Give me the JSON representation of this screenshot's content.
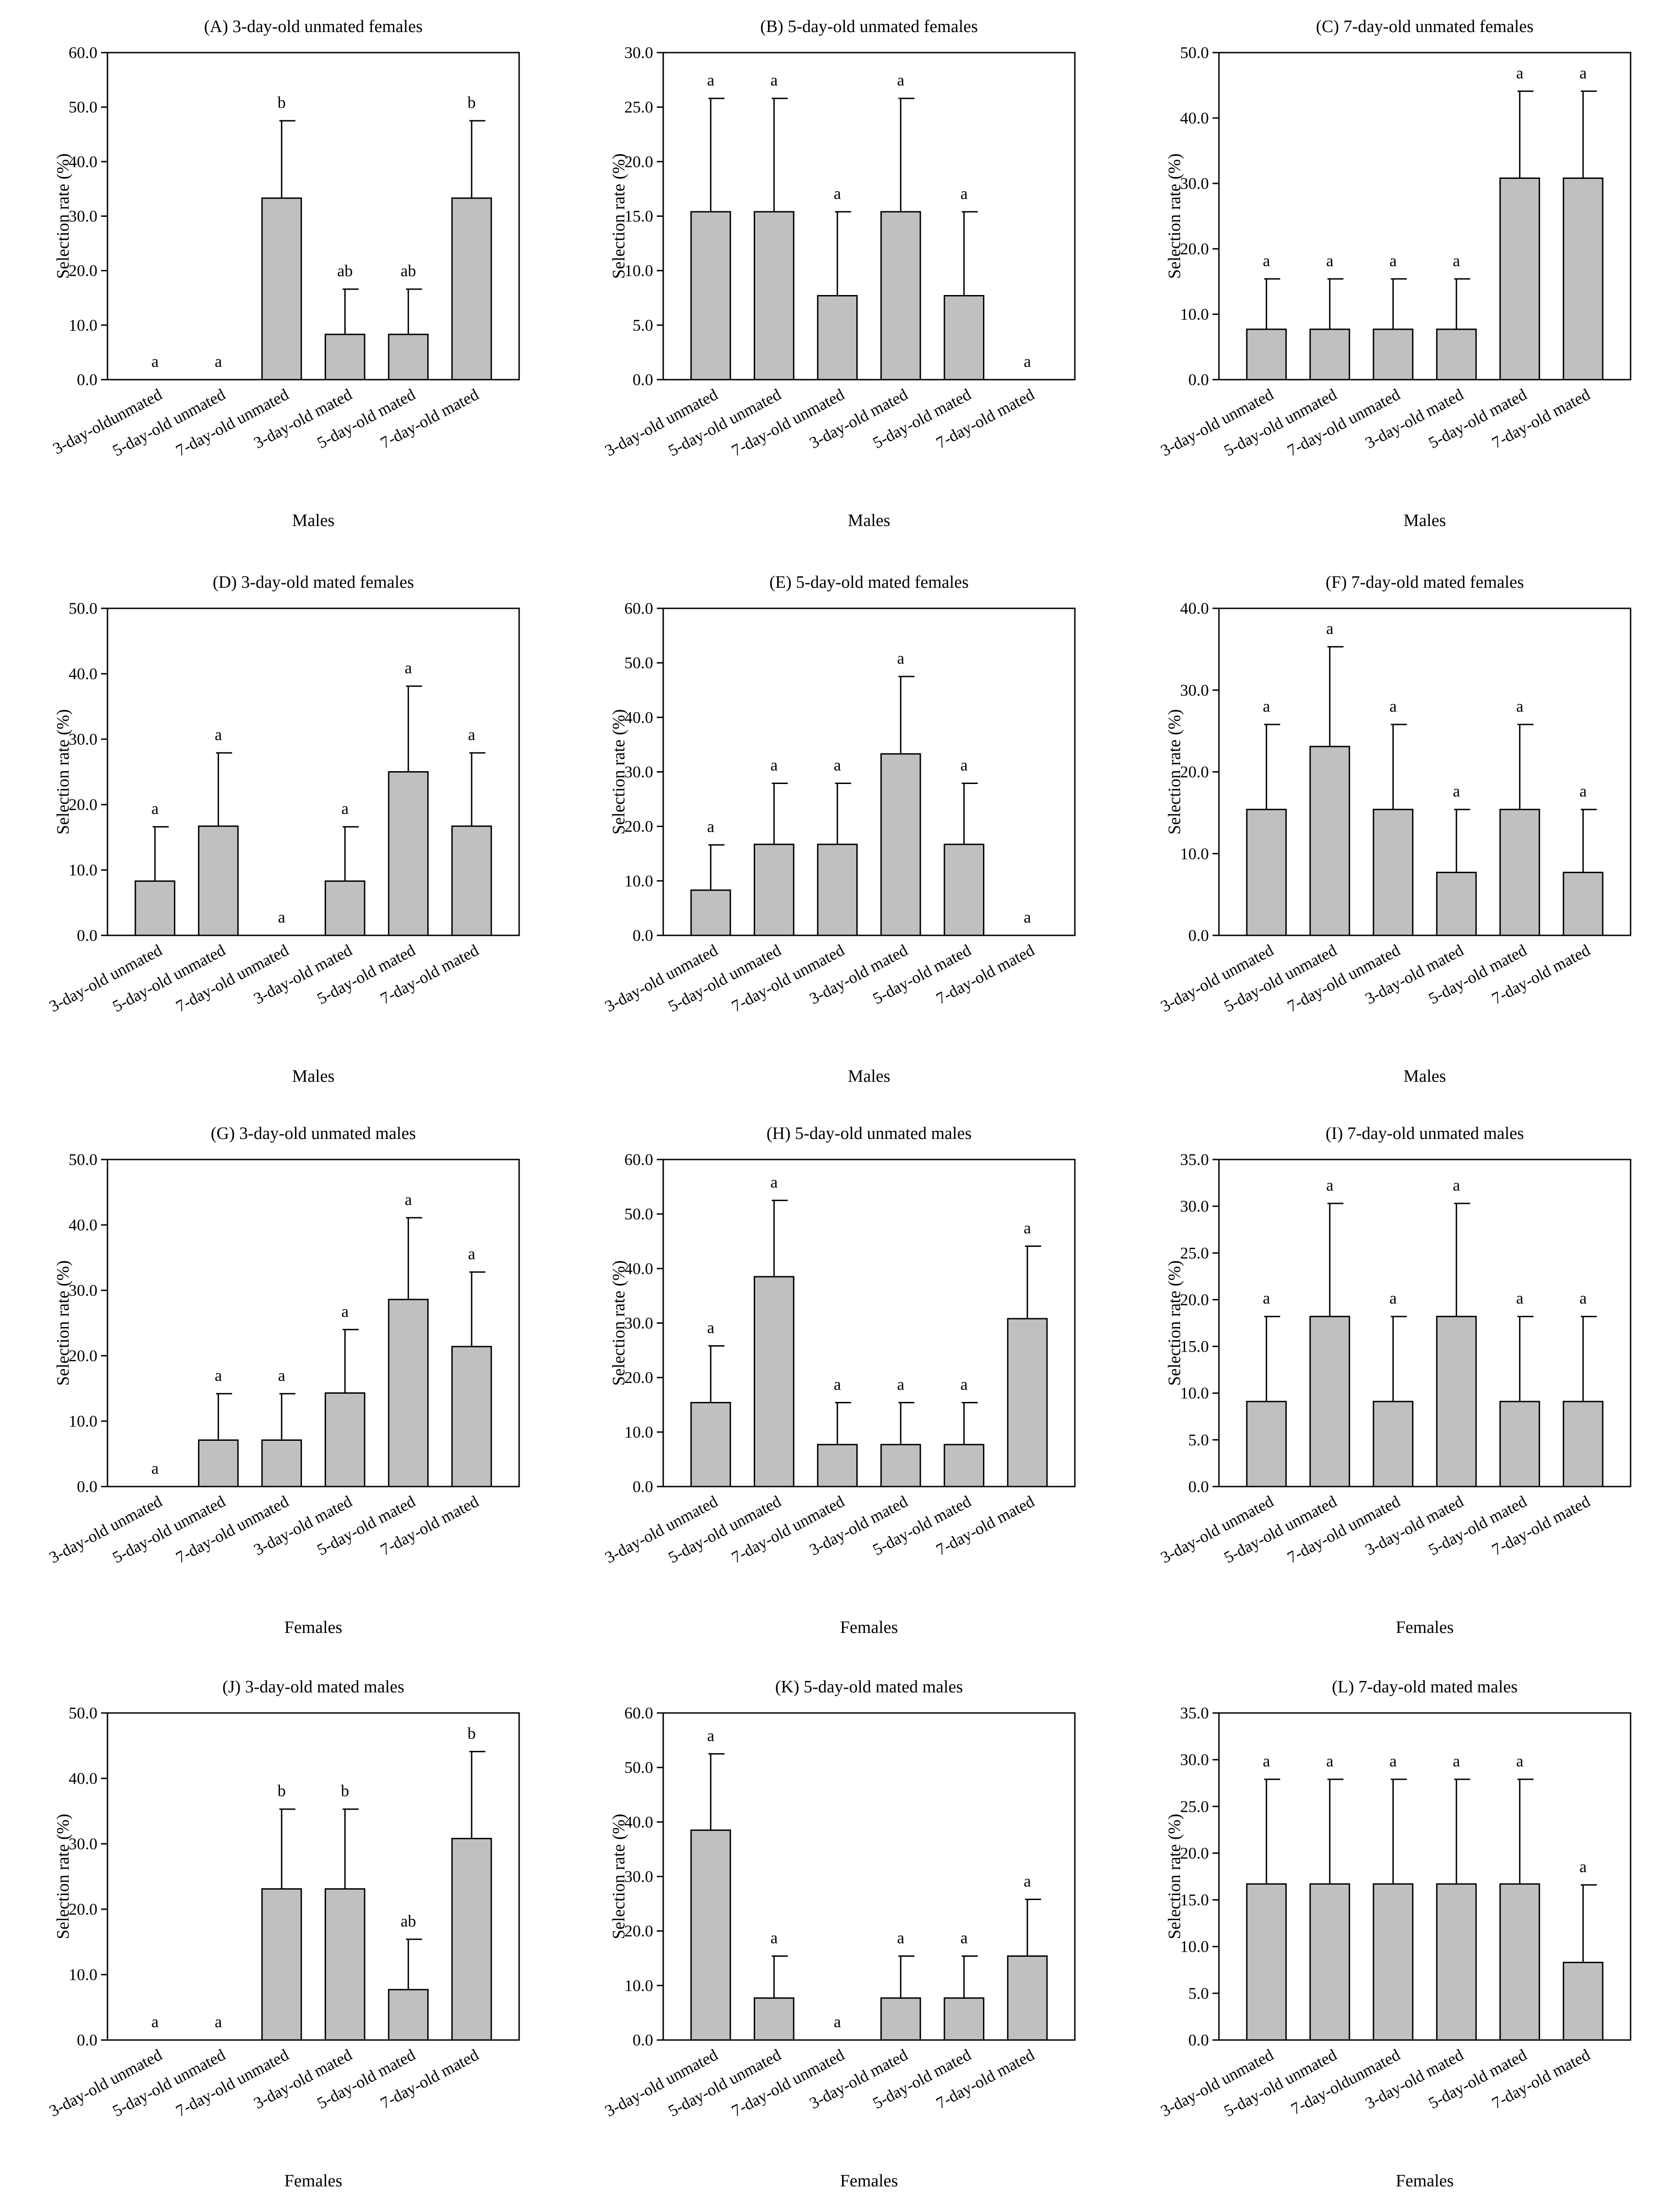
{
  "figure": {
    "bar_color": "#c0c0c0",
    "ylabel": "Selection rate (%)"
  },
  "chart_data": [
    {
      "panel": "A",
      "type": "bar",
      "title": "(A) 3-day-old unmated females",
      "xlabel": "Males",
      "ylabel": "Selection rate (%)",
      "ylim": [
        0,
        60
      ],
      "yticks": [
        "0.0",
        "10.0",
        "20.0",
        "30.0",
        "40.0",
        "50.0",
        "60.0"
      ],
      "categories": [
        "3-day-oldunmated",
        "5-day-old unmated",
        "7-day-old unmated",
        "3-day-old mated",
        "5-day-old  mated",
        "7-day-old mated"
      ],
      "values": [
        0,
        0,
        33.3,
        8.3,
        8.3,
        33.3
      ],
      "errors": [
        0,
        0,
        14.2,
        8.3,
        8.3,
        14.2
      ],
      "letters": [
        "a",
        "a",
        "b",
        "ab",
        "ab",
        "b"
      ]
    },
    {
      "panel": "B",
      "type": "bar",
      "title": "(B) 5-day-old unmated females",
      "xlabel": "Males",
      "ylabel": "Selection rate (%)",
      "ylim": [
        0,
        30
      ],
      "yticks": [
        "0.0",
        "5.0",
        "10.0",
        "15.0",
        "20.0",
        "25.0",
        "30.0"
      ],
      "categories": [
        "3-day-old unmated",
        "5-day-old unmated",
        "7-day-old unmated",
        "3-day-old mated",
        "5-day-old mated",
        "7-day-old mated"
      ],
      "values": [
        15.4,
        15.4,
        7.7,
        15.4,
        7.7,
        0
      ],
      "errors": [
        10.4,
        10.4,
        7.7,
        10.4,
        7.7,
        0
      ],
      "letters": [
        "a",
        "a",
        "a",
        "a",
        "a",
        "a"
      ]
    },
    {
      "panel": "C",
      "type": "bar",
      "title": "(C) 7-day-old unmated females",
      "xlabel": "Males",
      "ylabel": "Selection rate (%)",
      "ylim": [
        0,
        50
      ],
      "yticks": [
        "0.0",
        "10.0",
        "20.0",
        "30.0",
        "40.0",
        "50.0"
      ],
      "categories": [
        "3-day-old unmated",
        "5-day-old unmated",
        "7-day-old unmated",
        "3-day-old mated",
        "5-day-old mated",
        "7-day-old mated"
      ],
      "values": [
        7.7,
        7.7,
        7.7,
        7.7,
        30.8,
        30.8
      ],
      "errors": [
        7.7,
        7.7,
        7.7,
        7.7,
        13.3,
        13.3
      ],
      "letters": [
        "a",
        "a",
        "a",
        "a",
        "a",
        "a"
      ]
    },
    {
      "panel": "D",
      "type": "bar",
      "title": "(D) 3-day-old mated females",
      "xlabel": "Males",
      "ylabel": "Selection rate (%)",
      "ylim": [
        0,
        50
      ],
      "yticks": [
        "0.0",
        "10.0",
        "20.0",
        "30.0",
        "40.0",
        "50.0"
      ],
      "categories": [
        "3-day-old unmated",
        "5-day-old unmated",
        "7-day-old unmated",
        "3-day-old mated",
        "5-day-old mated",
        "7-day-old mated"
      ],
      "values": [
        8.3,
        16.7,
        0,
        8.3,
        25.0,
        16.7
      ],
      "errors": [
        8.3,
        11.2,
        0,
        8.3,
        13.1,
        11.2
      ],
      "letters": [
        "a",
        "a",
        "a",
        "a",
        "a",
        "a"
      ]
    },
    {
      "panel": "E",
      "type": "bar",
      "title": "(E) 5-day-old mated females",
      "xlabel": "Males",
      "ylabel": "Selection rate (%)",
      "ylim": [
        0,
        60
      ],
      "yticks": [
        "0.0",
        "10.0",
        "20.0",
        "30.0",
        "40.0",
        "50.0",
        "60.0"
      ],
      "categories": [
        "3-day-old unmated",
        "5-day-old unmated",
        "7-day-old unmated",
        "3-day-old mated",
        "5-day-old mated",
        "7-day-old mated"
      ],
      "values": [
        8.3,
        16.7,
        16.7,
        33.3,
        16.7,
        0
      ],
      "errors": [
        8.3,
        11.2,
        11.2,
        14.2,
        11.2,
        0
      ],
      "letters": [
        "a",
        "a",
        "a",
        "a",
        "a",
        "a"
      ]
    },
    {
      "panel": "F",
      "type": "bar",
      "title": "(F) 7-day-old mated females",
      "xlabel": "Males",
      "ylabel": "Selection rate (%)",
      "ylim": [
        0,
        40
      ],
      "yticks": [
        "0.0",
        "10.0",
        "20.0",
        "30.0",
        "40.0"
      ],
      "categories": [
        "3-day-old unmated",
        "5-day-old unmated",
        "7-day-old unmated",
        "3-day-old mated",
        "5-day-old mated",
        "7-day-old mated"
      ],
      "values": [
        15.4,
        23.1,
        15.4,
        7.7,
        15.4,
        7.7
      ],
      "errors": [
        10.4,
        12.2,
        10.4,
        7.7,
        10.4,
        7.7
      ],
      "letters": [
        "a",
        "a",
        "a",
        "a",
        "a",
        "a"
      ]
    },
    {
      "panel": "G",
      "type": "bar",
      "title": "(G) 3-day-old unmated males",
      "xlabel": "Females",
      "ylabel": "Selection rate (%)",
      "ylim": [
        0,
        50
      ],
      "yticks": [
        "0.0",
        "10.0",
        "20.0",
        "30.0",
        "40.0",
        "50.0"
      ],
      "categories": [
        "3-day-old unmated",
        "5-day-old unmated",
        "7-day-old unmated",
        "3-day-old mated",
        "5-day-old mated",
        "7-day-old mated"
      ],
      "values": [
        0,
        7.1,
        7.1,
        14.3,
        28.6,
        21.4
      ],
      "errors": [
        0,
        7.1,
        7.1,
        9.7,
        12.5,
        11.4
      ],
      "letters": [
        "a",
        "a",
        "a",
        "a",
        "a",
        "a"
      ]
    },
    {
      "panel": "H",
      "type": "bar",
      "title": "(H) 5-day-old unmated males",
      "xlabel": "Females",
      "ylabel": "Selection rate (%)",
      "ylim": [
        0,
        60
      ],
      "yticks": [
        "0.0",
        "10.0",
        "20.0",
        "30.0",
        "40.0",
        "50.0",
        "60.0"
      ],
      "categories": [
        "3-day-old unmated",
        "5-day-old unmated",
        "7-day-old unmated",
        "3-day-old mated",
        "5-day-old mated",
        "7-day-old mated"
      ],
      "values": [
        15.4,
        38.5,
        7.7,
        7.7,
        7.7,
        30.8
      ],
      "errors": [
        10.4,
        14.0,
        7.7,
        7.7,
        7.7,
        13.3
      ],
      "letters": [
        "a",
        "a",
        "a",
        "a",
        "a",
        "a"
      ]
    },
    {
      "panel": "I",
      "type": "bar",
      "title": "(I) 7-day-old unmated males",
      "xlabel": "Females",
      "ylabel": "Selection rate (%)",
      "ylim": [
        0,
        35
      ],
      "yticks": [
        "0.0",
        "5.0",
        "10.0",
        "15.0",
        "20.0",
        "25.0",
        "30.0",
        "35.0"
      ],
      "categories": [
        "3-day-old unmated",
        "5-day-old unmated",
        "7-day-old unmated",
        "3-day-old mated",
        "5-day-old mated",
        "7-day-old mated"
      ],
      "values": [
        9.1,
        18.2,
        9.1,
        18.2,
        9.1,
        9.1
      ],
      "errors": [
        9.1,
        12.1,
        9.1,
        12.1,
        9.1,
        9.1
      ],
      "letters": [
        "a",
        "a",
        "a",
        "a",
        "a",
        "a"
      ]
    },
    {
      "panel": "J",
      "type": "bar",
      "title": "(J) 3-day-old mated males",
      "xlabel": "Females",
      "ylabel": "Selection rate (%)",
      "ylim": [
        0,
        50
      ],
      "yticks": [
        "0.0",
        "10.0",
        "20.0",
        "30.0",
        "40.0",
        "50.0"
      ],
      "categories": [
        "3-day-old unmated",
        "5-day-old unmated",
        "7-day-old unmated",
        "3-day-old mated",
        "5-day-old mated",
        "7-day-old mated"
      ],
      "values": [
        0,
        0,
        23.1,
        23.1,
        7.7,
        30.8
      ],
      "errors": [
        0,
        0,
        12.2,
        12.2,
        7.7,
        13.3
      ],
      "letters": [
        "a",
        "a",
        "b",
        "b",
        "ab",
        "b"
      ]
    },
    {
      "panel": "K",
      "type": "bar",
      "title": "(K) 5-day-old mated males",
      "xlabel": "Females",
      "ylabel": "Selection rate (%)",
      "ylim": [
        0,
        60
      ],
      "yticks": [
        "0.0",
        "10.0",
        "20.0",
        "30.0",
        "40.0",
        "50.0",
        "60.0"
      ],
      "categories": [
        "3-day-old unmated",
        "5-day-old unmated",
        "7-day-old unmated",
        "3-day-old mated",
        "5-day-old mated",
        "7-day-old mated"
      ],
      "values": [
        38.5,
        7.7,
        0,
        7.7,
        7.7,
        15.4
      ],
      "errors": [
        14.0,
        7.7,
        0,
        7.7,
        7.7,
        10.4
      ],
      "letters": [
        "a",
        "a",
        "a",
        "a",
        "a",
        "a"
      ]
    },
    {
      "panel": "L",
      "type": "bar",
      "title": "(L) 7-day-old mated males",
      "xlabel": "Females",
      "ylabel": "Selection rate (%)",
      "ylim": [
        0,
        35
      ],
      "yticks": [
        "0.0",
        "5.0",
        "10.0",
        "15.0",
        "20.0",
        "25.0",
        "30.0",
        "35.0"
      ],
      "categories": [
        "3-day-old unmated",
        "5-day-old unmated",
        "7-day-oldunmated",
        "3-day-old mated",
        "5-day-old mated",
        "7-day-old mated"
      ],
      "values": [
        16.7,
        16.7,
        16.7,
        16.7,
        16.7,
        8.3
      ],
      "errors": [
        11.2,
        11.2,
        11.2,
        11.2,
        11.2,
        8.3
      ],
      "letters": [
        "a",
        "a",
        "a",
        "a",
        "a",
        "a"
      ]
    }
  ]
}
